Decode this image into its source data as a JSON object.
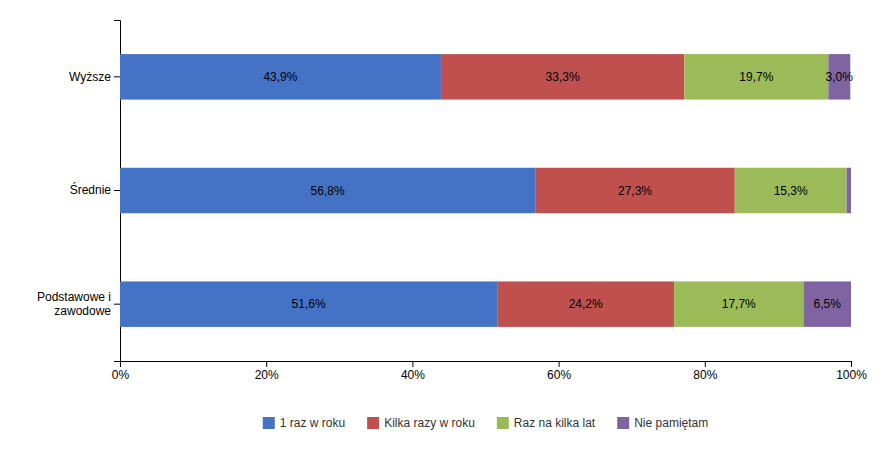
{
  "chart_data": {
    "type": "bar",
    "orientation": "horizontal",
    "stacked": true,
    "data_labels": true,
    "legend": "bottom",
    "grid": false,
    "categories": [
      "Wyższe",
      "Średnie",
      "Podstawowe i\nzawodowe"
    ],
    "series": [
      {
        "name": "1 raz w roku",
        "color": "#4472C4",
        "values": [
          43.9,
          56.8,
          51.6
        ],
        "value_labels": [
          "43,9%",
          "56,8%",
          "51,6%"
        ]
      },
      {
        "name": "Kilka razy w roku",
        "color": "#C0504D",
        "values": [
          33.3,
          27.3,
          24.2
        ],
        "value_labels": [
          "33,3%",
          "27,3%",
          "24,2%"
        ]
      },
      {
        "name": "Raz na kilka lat",
        "color": "#9BBB59",
        "values": [
          19.7,
          15.3,
          17.7
        ],
        "value_labels": [
          "19,7%",
          "15,3%",
          "17,7%"
        ]
      },
      {
        "name": "Nie pamiętam",
        "color": "#8064A2",
        "values": [
          3.0,
          0.6,
          6.5
        ],
        "value_labels": [
          "3,0%",
          null,
          "6,5%"
        ]
      }
    ],
    "xlim": [
      0,
      100
    ],
    "xticks": [
      {
        "value": 0,
        "label": "0%"
      },
      {
        "value": 20,
        "label": "20%"
      },
      {
        "value": 40,
        "label": "40%"
      },
      {
        "value": 60,
        "label": "60%"
      },
      {
        "value": 80,
        "label": "80%"
      },
      {
        "value": 100,
        "label": "100%"
      }
    ]
  }
}
